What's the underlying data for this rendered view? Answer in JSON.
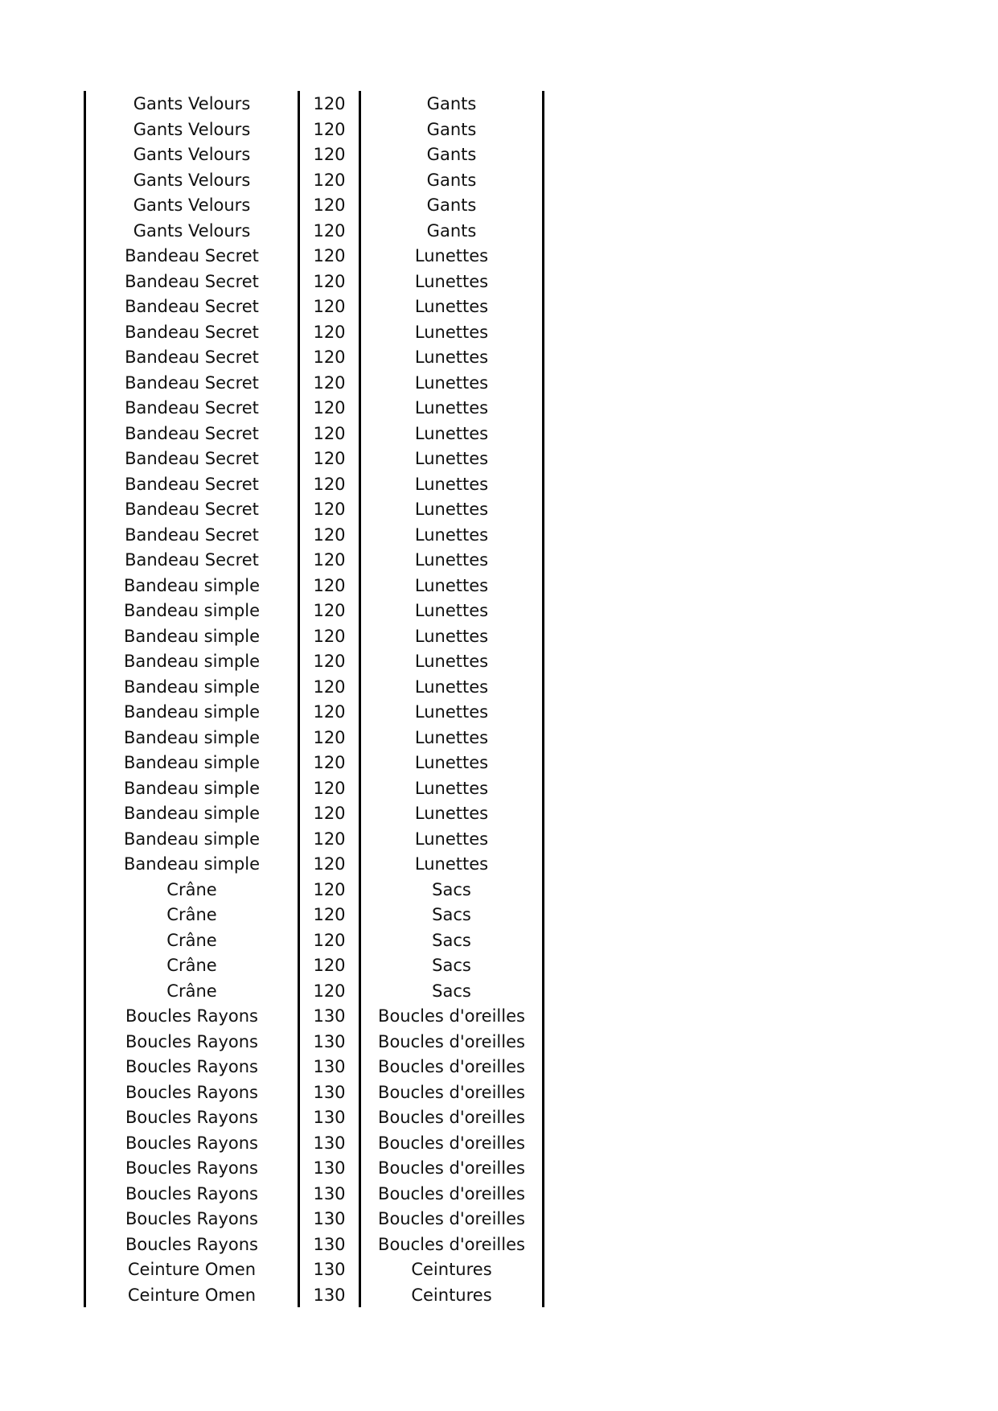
{
  "table": {
    "rows": [
      [
        "Gants Velours",
        120,
        "Gants"
      ],
      [
        "Gants Velours",
        120,
        "Gants"
      ],
      [
        "Gants Velours",
        120,
        "Gants"
      ],
      [
        "Gants Velours",
        120,
        "Gants"
      ],
      [
        "Gants Velours",
        120,
        "Gants"
      ],
      [
        "Gants Velours",
        120,
        "Gants"
      ],
      [
        "Bandeau Secret",
        120,
        "Lunettes"
      ],
      [
        "Bandeau Secret",
        120,
        "Lunettes"
      ],
      [
        "Bandeau Secret",
        120,
        "Lunettes"
      ],
      [
        "Bandeau Secret",
        120,
        "Lunettes"
      ],
      [
        "Bandeau Secret",
        120,
        "Lunettes"
      ],
      [
        "Bandeau Secret",
        120,
        "Lunettes"
      ],
      [
        "Bandeau Secret",
        120,
        "Lunettes"
      ],
      [
        "Bandeau Secret",
        120,
        "Lunettes"
      ],
      [
        "Bandeau Secret",
        120,
        "Lunettes"
      ],
      [
        "Bandeau Secret",
        120,
        "Lunettes"
      ],
      [
        "Bandeau Secret",
        120,
        "Lunettes"
      ],
      [
        "Bandeau Secret",
        120,
        "Lunettes"
      ],
      [
        "Bandeau Secret",
        120,
        "Lunettes"
      ],
      [
        "Bandeau simple",
        120,
        "Lunettes"
      ],
      [
        "Bandeau simple",
        120,
        "Lunettes"
      ],
      [
        "Bandeau simple",
        120,
        "Lunettes"
      ],
      [
        "Bandeau simple",
        120,
        "Lunettes"
      ],
      [
        "Bandeau simple",
        120,
        "Lunettes"
      ],
      [
        "Bandeau simple",
        120,
        "Lunettes"
      ],
      [
        "Bandeau simple",
        120,
        "Lunettes"
      ],
      [
        "Bandeau simple",
        120,
        "Lunettes"
      ],
      [
        "Bandeau simple",
        120,
        "Lunettes"
      ],
      [
        "Bandeau simple",
        120,
        "Lunettes"
      ],
      [
        "Bandeau simple",
        120,
        "Lunettes"
      ],
      [
        "Bandeau simple",
        120,
        "Lunettes"
      ],
      [
        "Crâne",
        120,
        "Sacs"
      ],
      [
        "Crâne",
        120,
        "Sacs"
      ],
      [
        "Crâne",
        120,
        "Sacs"
      ],
      [
        "Crâne",
        120,
        "Sacs"
      ],
      [
        "Crâne",
        120,
        "Sacs"
      ],
      [
        "Boucles Rayons",
        130,
        "Boucles d'oreilles"
      ],
      [
        "Boucles Rayons",
        130,
        "Boucles d'oreilles"
      ],
      [
        "Boucles Rayons",
        130,
        "Boucles d'oreilles"
      ],
      [
        "Boucles Rayons",
        130,
        "Boucles d'oreilles"
      ],
      [
        "Boucles Rayons",
        130,
        "Boucles d'oreilles"
      ],
      [
        "Boucles Rayons",
        130,
        "Boucles d'oreilles"
      ],
      [
        "Boucles Rayons",
        130,
        "Boucles d'oreilles"
      ],
      [
        "Boucles Rayons",
        130,
        "Boucles d'oreilles"
      ],
      [
        "Boucles Rayons",
        130,
        "Boucles d'oreilles"
      ],
      [
        "Boucles Rayons",
        130,
        "Boucles d'oreilles"
      ],
      [
        "Ceinture Omen",
        130,
        "Ceintures"
      ],
      [
        "Ceinture Omen",
        130,
        "Ceintures"
      ]
    ]
  }
}
